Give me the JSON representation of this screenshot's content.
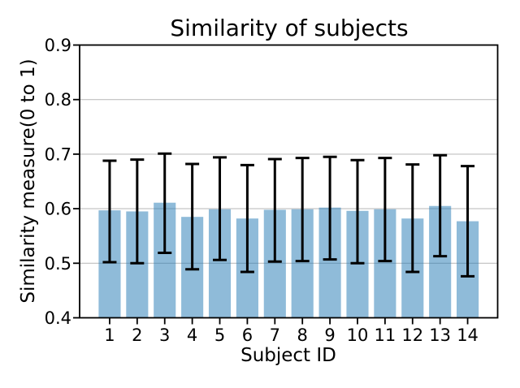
{
  "chart_data": {
    "type": "bar",
    "title": "Similarity of subjects",
    "xlabel": "Subject ID",
    "ylabel": "Similarity measure(0 to 1)",
    "categories": [
      "1",
      "2",
      "3",
      "4",
      "5",
      "6",
      "7",
      "8",
      "9",
      "10",
      "11",
      "12",
      "13",
      "14"
    ],
    "values": [
      0.597,
      0.595,
      0.611,
      0.585,
      0.599,
      0.582,
      0.598,
      0.599,
      0.602,
      0.596,
      0.599,
      0.582,
      0.605,
      0.577
    ],
    "error_top": [
      0.688,
      0.69,
      0.701,
      0.682,
      0.694,
      0.68,
      0.691,
      0.693,
      0.695,
      0.689,
      0.693,
      0.681,
      0.698,
      0.678
    ],
    "error_bottom": [
      0.502,
      0.5,
      0.519,
      0.489,
      0.506,
      0.484,
      0.503,
      0.504,
      0.507,
      0.5,
      0.504,
      0.484,
      0.513,
      0.476
    ],
    "ylim": [
      0.4,
      0.9
    ],
    "yticks": [
      0.4,
      0.5,
      0.6,
      0.7,
      0.8,
      0.9
    ],
    "ytick_labels": [
      "0.4",
      "0.5",
      "0.6",
      "0.7",
      "0.8",
      "0.9"
    ],
    "baseline": 0.4,
    "grid": "horizontal-y",
    "legend": "none",
    "bar_color": "#1f77b4",
    "bar_alpha": 0.5,
    "bar_fill_apparent": "#8fbbda",
    "error_color": "#000000",
    "grid_color": "#bfbfbf",
    "axis_color": "#000000",
    "background": "#ffffff"
  }
}
